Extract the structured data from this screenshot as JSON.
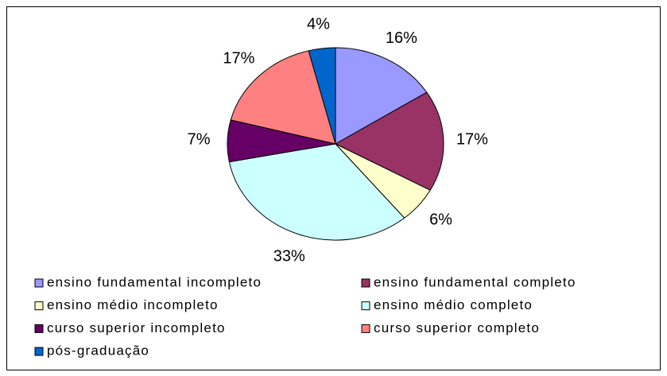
{
  "chart_data": {
    "type": "pie",
    "categories": [
      "ensino fundamental incompleto",
      "ensino fundamental completo",
      "ensino médio incompleto",
      "ensino médio completo",
      "curso superior incompleto",
      "curso superior completo",
      "pós-graduação"
    ],
    "values": [
      16,
      17,
      6,
      33,
      7,
      17,
      4
    ],
    "value_labels": [
      "16%",
      "17%",
      "6%",
      "33%",
      "7%",
      "17%",
      "4%"
    ],
    "colors": [
      "#9999ff",
      "#993366",
      "#ffffcc",
      "#ccffff",
      "#660066",
      "#ff8080",
      "#0066cc"
    ]
  }
}
